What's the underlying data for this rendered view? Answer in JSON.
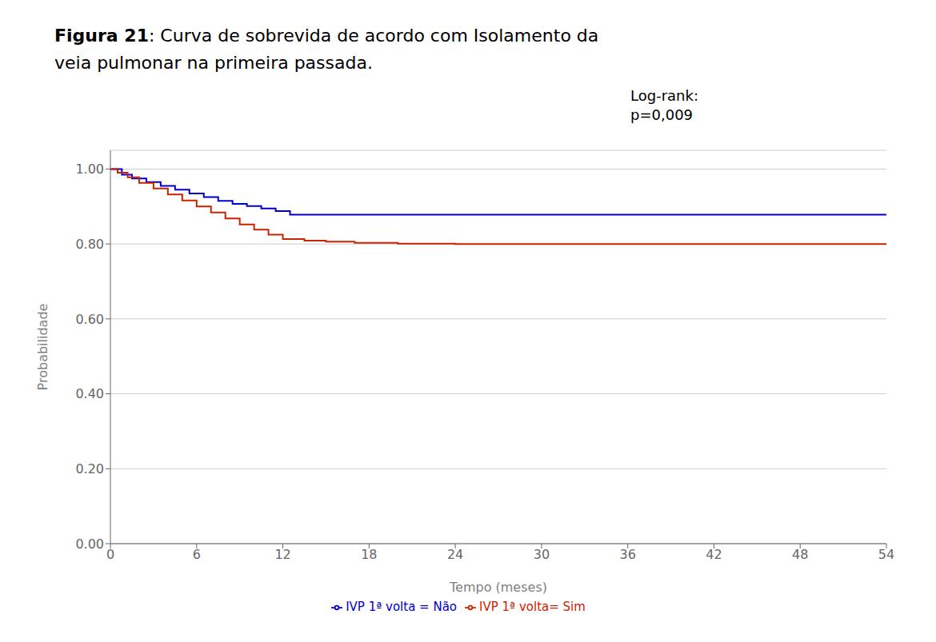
{
  "chart_data": {
    "type": "step",
    "title": [
      "Figura 21: Curva de sobrevida de acordo com Isolamento da",
      "veia pulmonar na primeira passada."
    ],
    "annotations": [
      "Log-rank:\np=0,009"
    ],
    "x_label": "Tempo (meses)",
    "y_label": "Probabilidade",
    "xlim": [
      0,
      54
    ],
    "ylim": [
      0.0,
      1.05
    ],
    "xticks": [
      0,
      6,
      12,
      18,
      24,
      30,
      36,
      42,
      48,
      54
    ],
    "yticks": [
      {
        "value": 0.0,
        "label": "0.00"
      },
      {
        "value": 0.2,
        "label": "0.20"
      },
      {
        "value": 0.4,
        "label": "0.40"
      },
      {
        "value": 0.6,
        "label": "0.60"
      },
      {
        "value": 0.8,
        "label": "0.80"
      },
      {
        "value": 1.0,
        "label": "1.00"
      }
    ],
    "grid": "y",
    "legend": "bottom",
    "series": [
      {
        "name": "IVP 1ª volta = Não",
        "color": "#0000CC",
        "x": [
          0,
          0.3,
          0.8,
          1.5,
          2.5,
          3.5,
          4.5,
          5.5,
          6.5,
          7.5,
          8.5,
          9.5,
          10.5,
          11.5,
          12.5,
          54
        ],
        "values": [
          1.0,
          1.0,
          0.985,
          0.975,
          0.965,
          0.955,
          0.945,
          0.935,
          0.925,
          0.915,
          0.907,
          0.901,
          0.895,
          0.888,
          0.878,
          0.878
        ]
      },
      {
        "name": "IVP 1ª volta= Sim",
        "color": "#CC2200",
        "x": [
          0,
          0.5,
          1.2,
          2.0,
          3.0,
          4.0,
          5.0,
          6.0,
          7.0,
          8.0,
          9.0,
          10.0,
          11.0,
          12.0,
          13.5,
          15.0,
          17.0,
          20.0,
          24.0,
          54
        ],
        "values": [
          1.0,
          0.99,
          0.978,
          0.963,
          0.948,
          0.932,
          0.916,
          0.9,
          0.884,
          0.868,
          0.852,
          0.838,
          0.825,
          0.813,
          0.809,
          0.806,
          0.803,
          0.801,
          0.8,
          0.8
        ]
      }
    ]
  }
}
